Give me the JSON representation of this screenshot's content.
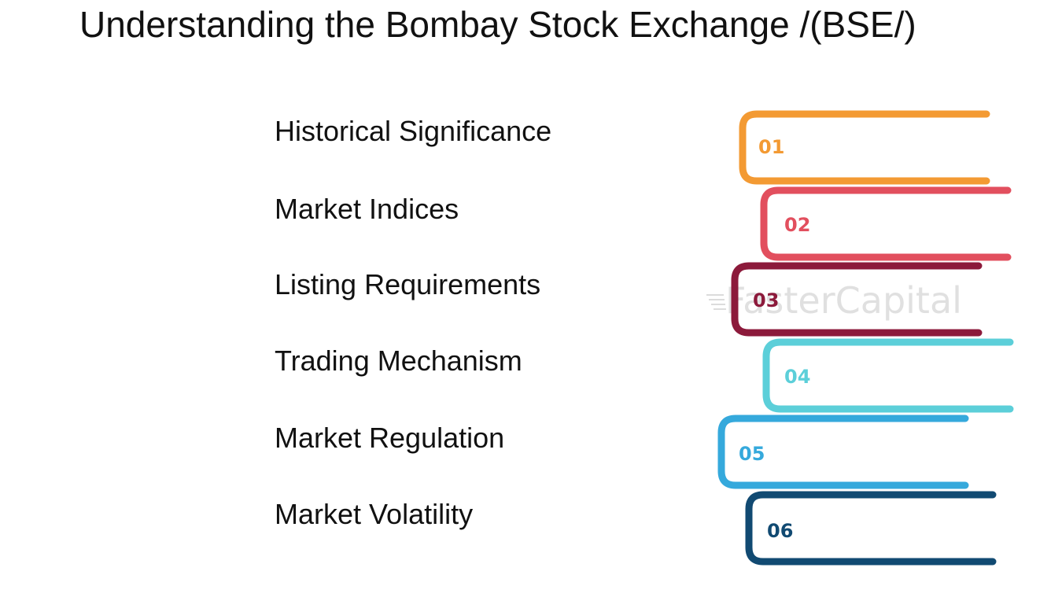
{
  "title": "Understanding the Bombay Stock Exchange /(BSE/)",
  "watermark": "FasterCapital",
  "items": [
    {
      "number": "01",
      "label": "Historical Significance",
      "color": "#f39a33"
    },
    {
      "number": "02",
      "label": "Market Indices",
      "color": "#e24f5e"
    },
    {
      "number": "03",
      "label": "Listing Requirements",
      "color": "#8c1a3b"
    },
    {
      "number": "04",
      "label": "Trading Mechanism",
      "color": "#5ccfd9"
    },
    {
      "number": "05",
      "label": "Market Regulation",
      "color": "#35a9dc"
    },
    {
      "number": "06",
      "label": "Market Volatility",
      "color": "#114a72"
    }
  ]
}
